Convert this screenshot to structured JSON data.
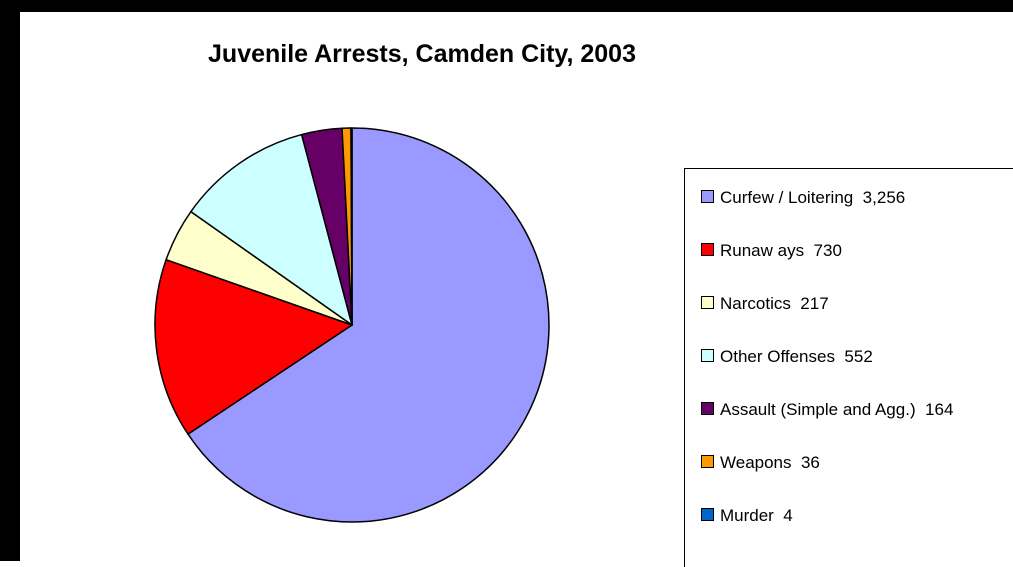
{
  "chart_data": {
    "type": "pie",
    "title": "Juvenile Arrests, Camden City, 2003",
    "legend_position": "right",
    "slices": [
      {
        "label": "Curfew / Loitering",
        "value": 3256,
        "display_value": "3,256",
        "color": "#9999FF"
      },
      {
        "label": "Runaw ays",
        "value": 730,
        "display_value": "730",
        "color": "#FF0000"
      },
      {
        "label": "Narcotics",
        "value": 217,
        "display_value": "217",
        "color": "#FFFFCC"
      },
      {
        "label": "Other Offenses",
        "value": 552,
        "display_value": "552",
        "color": "#CCFFFF"
      },
      {
        "label": "Assault (Simple and Agg.)",
        "value": 164,
        "display_value": "164",
        "color": "#660066"
      },
      {
        "label": "Weapons",
        "value": 36,
        "display_value": "36",
        "color": "#FF9900"
      },
      {
        "label": "Murder",
        "value": 4,
        "display_value": "4",
        "color": "#0066CC"
      }
    ]
  }
}
